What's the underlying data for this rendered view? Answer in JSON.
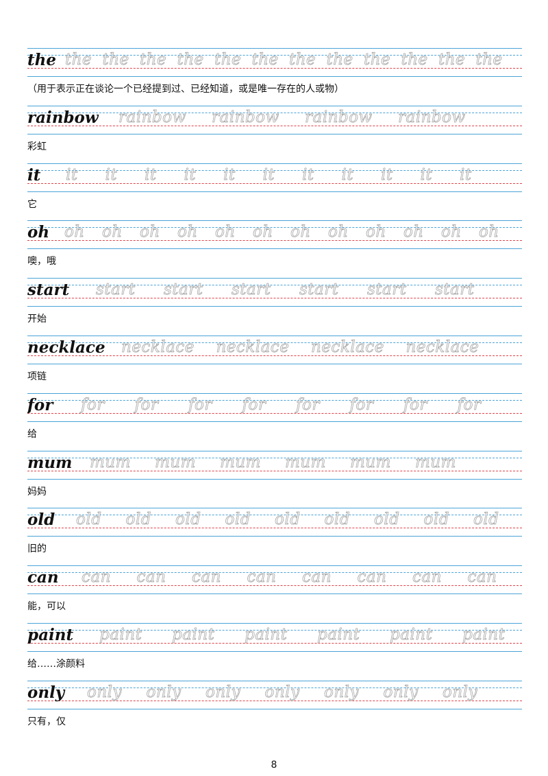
{
  "worksheet": {
    "entries": [
      {
        "word": "the",
        "trace_count": 12,
        "meaning": "（用于表示正在谈论一个已经提到过、已经知道，或是唯一存在的人或物）"
      },
      {
        "word": "rainbow",
        "trace_count": 4,
        "meaning": "彩虹"
      },
      {
        "word": "it",
        "trace_count": 11,
        "meaning": "它"
      },
      {
        "word": "oh",
        "trace_count": 12,
        "meaning": " 噢，哦"
      },
      {
        "word": "start",
        "trace_count": 6,
        "meaning": "开始"
      },
      {
        "word": "necklace",
        "trace_count": 4,
        "meaning": "项链"
      },
      {
        "word": "for",
        "trace_count": 8,
        "meaning": "给"
      },
      {
        "word": "mum",
        "trace_count": 6,
        "meaning": "妈妈"
      },
      {
        "word": "old",
        "trace_count": 9,
        "meaning": "旧的"
      },
      {
        "word": "can",
        "trace_count": 8,
        "meaning": "能，可以"
      },
      {
        "word": "paint",
        "trace_count": 6,
        "meaning": "给……涂颜料"
      },
      {
        "word": "only",
        "trace_count": 7,
        "meaning": "只有，仅"
      }
    ],
    "colors": {
      "guide_blue": "#4aa3d8",
      "baseline_red": "#e0434a",
      "trace_gray": "#a6a6a6"
    }
  },
  "footer": {
    "page_number": "8"
  }
}
